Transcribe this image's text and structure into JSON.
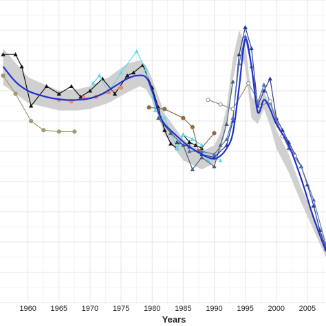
{
  "chart_data": {
    "type": "line",
    "title": "",
    "xlabel": "Years",
    "ylabel": "",
    "xlim": [
      1955.5,
      2008
    ],
    "ylim": [
      0,
      100
    ],
    "x_ticks": [
      1960,
      1965,
      1970,
      1975,
      1980,
      1985,
      1990,
      1995,
      2000,
      2005
    ],
    "x_tick_labels": [
      "1960",
      "1965",
      "1970",
      "1975",
      "1980",
      "1985",
      "1990",
      "1995",
      "2000",
      "2005"
    ],
    "grid": true,
    "legend": "none",
    "colors": {
      "black": "#111111",
      "olive": "#9e9a6c",
      "cyan": "#5fd9ec",
      "brown": "#8b6a45",
      "salmon": "#e8896b",
      "slate": "#44607a",
      "navy": "#2a3a8c",
      "steel": "#4f6fb0",
      "gray": "#888888",
      "trend": "#1f2fcf",
      "band": "#c8c8c8"
    },
    "confidence_band": {
      "x": [
        1956,
        1960,
        1965,
        1968,
        1970,
        1973,
        1976,
        1978,
        1979,
        1980,
        1982,
        1985,
        1988,
        1990,
        1991,
        1992,
        1993,
        1994,
        1995,
        1996,
        1997,
        1998,
        1999,
        2000,
        2002,
        2004,
        2006,
        2008
      ],
      "upper": [
        84,
        74.5,
        70,
        70.5,
        71.5,
        74.5,
        79,
        80,
        78.5,
        74,
        62.5,
        54,
        50,
        52,
        56,
        64.5,
        80.5,
        90,
        86,
        68,
        66,
        70,
        65,
        57,
        49,
        38,
        29,
        20
      ],
      "lower": [
        72,
        66,
        63.5,
        63.5,
        64,
        66,
        69.5,
        71.5,
        70.5,
        67,
        55.5,
        47,
        44,
        46,
        50,
        58.5,
        73.5,
        84,
        78,
        61,
        59,
        64,
        58.5,
        51,
        43,
        33,
        24,
        15
      ]
    },
    "trend": {
      "name": "",
      "x": [
        1956,
        1958,
        1960,
        1962,
        1964,
        1966,
        1968,
        1970,
        1972,
        1974,
        1976,
        1977.5,
        1979,
        1980,
        1981,
        1982,
        1984,
        1986,
        1988,
        1989,
        1990,
        1991,
        1992,
        1993,
        1994,
        1995,
        1996,
        1997,
        1998,
        1999,
        2000,
        2002,
        2004,
        2006,
        2008
      ],
      "y": [
        78,
        73,
        70,
        68.5,
        67.5,
        67,
        67,
        67.5,
        69,
        71.5,
        74,
        75,
        74.5,
        70,
        63,
        59,
        55,
        51.5,
        49,
        48,
        47.5,
        48.5,
        51,
        56,
        71,
        87,
        78,
        63,
        67,
        64,
        59,
        52,
        41,
        28,
        17
      ]
    },
    "series": [
      {
        "name": "",
        "color": "black",
        "marker": "triangle",
        "x": [
          1956,
          1958,
          1959,
          1960.5,
          1963,
          1965,
          1967,
          1968.5,
          1970,
          1972,
          1974,
          1976,
          1977,
          1978.5,
          1980,
          1981,
          1982,
          1983,
          1984,
          1985,
          1986,
          1987,
          1988
        ],
        "y": [
          82,
          82,
          78,
          65,
          71.5,
          69,
          71.5,
          68,
          70,
          74,
          69,
          75,
          76,
          78.5,
          71,
          64.5,
          57,
          52.5,
          51,
          55.5,
          53,
          52,
          51
        ]
      },
      {
        "name": "",
        "color": "olive",
        "marker": "circle",
        "x": [
          1956,
          1958,
          1960.5,
          1962.5,
          1965,
          1967.5
        ],
        "y": [
          75,
          69,
          60,
          57,
          56.5,
          56.5
        ]
      },
      {
        "name": "",
        "color": "cyan",
        "marker": "triangle",
        "x": [
          1970.5,
          1971.5,
          1973,
          1975,
          1977.5,
          1979,
          1980.5,
          1982,
          1983,
          1984,
          1985,
          1986.5,
          1988,
          1989,
          1990,
          1991
        ],
        "y": [
          72.5,
          75,
          69.5,
          76,
          83,
          77,
          63.5,
          61,
          56,
          51,
          55.5,
          54,
          52,
          47,
          48,
          47
        ]
      },
      {
        "name": "",
        "color": "salmon",
        "marker": "circle",
        "x": [
          1965,
          1967,
          1969,
          1971,
          1973,
          1975
        ],
        "y": [
          67,
          66.5,
          67.5,
          68,
          69.5,
          71
        ]
      },
      {
        "name": "",
        "color": "brown",
        "marker": "circle",
        "x": [
          1979.5,
          1982,
          1985,
          1986.5,
          1987.5,
          1990
        ],
        "y": [
          64.5,
          64,
          61,
          58,
          50,
          56
        ]
      },
      {
        "name": "",
        "color": "slate",
        "marker": "triangle",
        "x": [
          1981,
          1983,
          1985,
          1986.5,
          1988,
          1990,
          1991,
          1992,
          1993
        ],
        "y": [
          61,
          56,
          52,
          44,
          48,
          45,
          52,
          59,
          73
        ]
      },
      {
        "name": "",
        "color": "navy",
        "marker": "triangle",
        "x": [
          1984,
          1986,
          1988,
          1990,
          1992,
          1993,
          1994,
          1995,
          1996,
          1997,
          1998,
          1999,
          2000,
          2001,
          2002,
          2003,
          2004,
          2005,
          2006,
          2007,
          2008
        ],
        "y": [
          53,
          51.5,
          49,
          48,
          52,
          60,
          82,
          91,
          84,
          65,
          70,
          74,
          61,
          57,
          53,
          49,
          45,
          39,
          32,
          24,
          18
        ]
      },
      {
        "name": "",
        "color": "steel",
        "marker": "triangle",
        "x": [
          1986,
          1988,
          1990,
          1992,
          1993,
          1994,
          1995,
          1996,
          1997,
          1998,
          1999,
          2000,
          2002,
          2004,
          2006,
          2008
        ],
        "y": [
          50,
          50,
          49,
          54,
          61,
          79,
          88,
          78,
          66,
          72,
          66,
          60,
          51,
          45,
          34,
          19
        ]
      },
      {
        "name": "",
        "color": "gray",
        "marker": "circle",
        "x": [
          1989,
          1991,
          1993,
          1995.5,
          1997.5,
          1999,
          2001,
          2003
        ],
        "y": [
          67,
          65.5,
          64,
          72.5,
          65,
          66.5,
          55,
          48.5
        ]
      }
    ]
  }
}
